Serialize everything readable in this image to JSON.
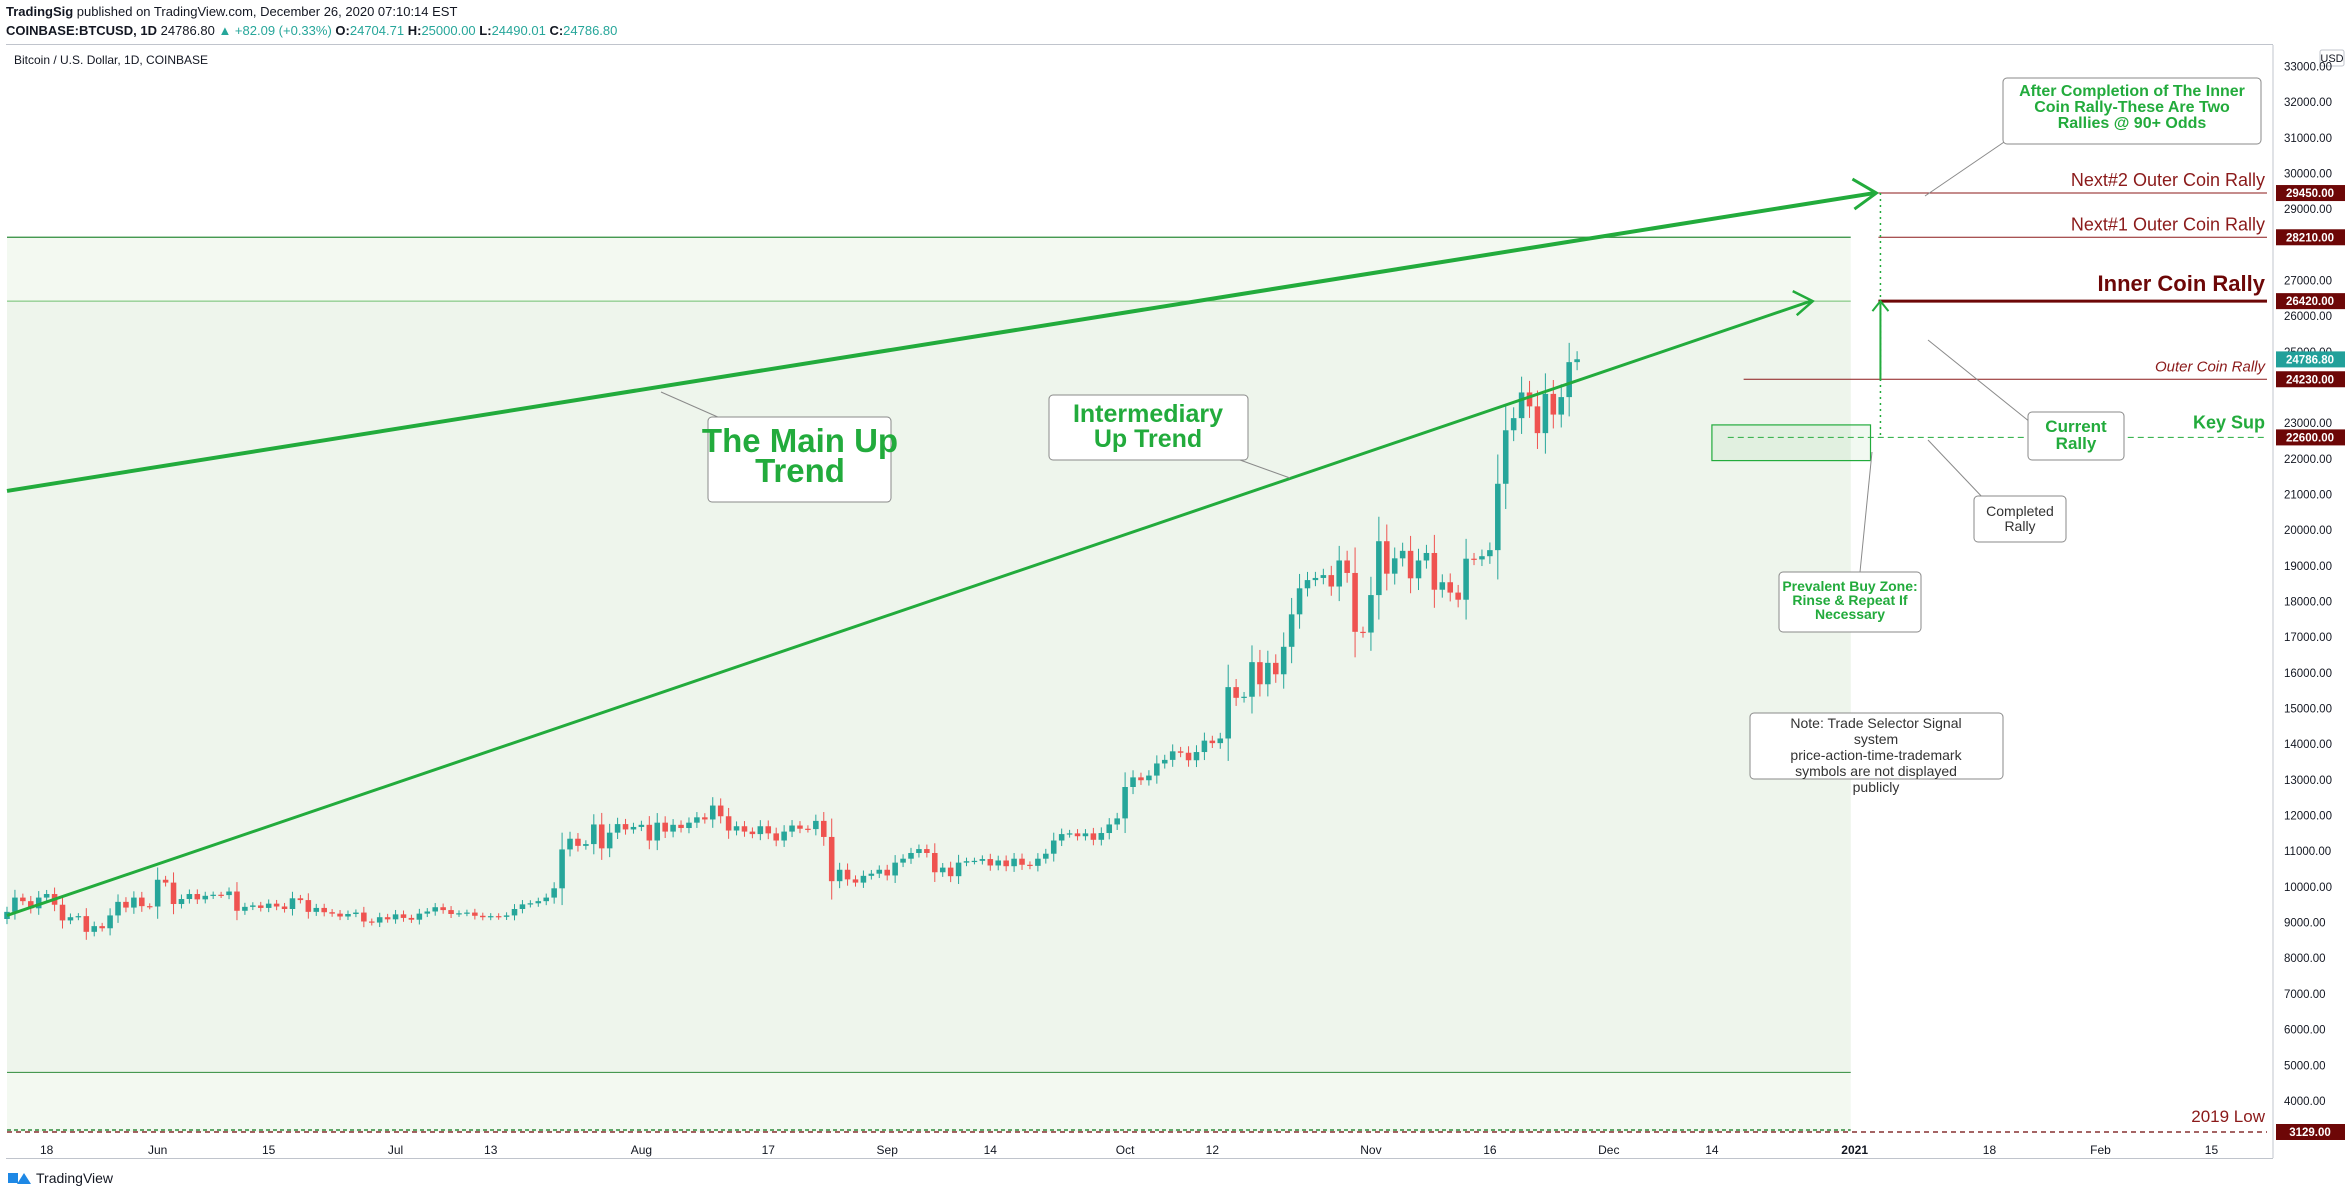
{
  "header": {
    "publisher": "TradingSig",
    "published_text": "published on TradingView.com, December 26, 2020 07:10:14 EST",
    "symbol": "COINBASE:BTCUSD, 1D",
    "last": "24786.80",
    "change": "▲ +82.09 (+0.33%)",
    "o_label": "O:",
    "o": "24704.71",
    "h_label": "H:",
    "h": "25000.00",
    "l_label": "L:",
    "l": "24490.01",
    "c_label": "C:",
    "c": "24786.80"
  },
  "footer": {
    "brand": "TradingView"
  },
  "colors": {
    "up": "#26a69a",
    "down": "#ef5350",
    "trend": "#22ab3c",
    "darkred": "#6d0707",
    "zone": "#eef5ec",
    "teal": "#22a09a"
  },
  "chart_data": {
    "type": "candlestick",
    "title": "Bitcoin / U.S. Dollar, 1D, COINBASE",
    "currency": "USD",
    "ylim": [
      2400,
      33600
    ],
    "y_ticks": [
      3000,
      4000,
      5000,
      6000,
      7000,
      8000,
      9000,
      10000,
      11000,
      12000,
      13000,
      14000,
      15000,
      16000,
      17000,
      18000,
      19000,
      20000,
      21000,
      22000,
      23000,
      24000,
      25000,
      26000,
      27000,
      28000,
      29000,
      30000,
      31000,
      32000,
      33000
    ],
    "x_range": [
      "2020-05-13",
      "2021-02-22"
    ],
    "x_ticks": [
      {
        "date": "2020-05-18",
        "label": "18"
      },
      {
        "date": "2020-06-01",
        "label": "Jun"
      },
      {
        "date": "2020-06-15",
        "label": "15"
      },
      {
        "date": "2020-07-01",
        "label": "Jul"
      },
      {
        "date": "2020-07-13",
        "label": "13"
      },
      {
        "date": "2020-08-01",
        "label": "Aug"
      },
      {
        "date": "2020-08-17",
        "label": "17"
      },
      {
        "date": "2020-09-01",
        "label": "Sep"
      },
      {
        "date": "2020-09-14",
        "label": "14"
      },
      {
        "date": "2020-10-01",
        "label": "Oct"
      },
      {
        "date": "2020-10-12",
        "label": "12"
      },
      {
        "date": "2020-11-01",
        "label": "Nov"
      },
      {
        "date": "2020-11-16",
        "label": "16"
      },
      {
        "date": "2020-12-01",
        "label": "Dec"
      },
      {
        "date": "2020-12-14",
        "label": "14"
      },
      {
        "date": "2021-01-01",
        "label": "2021"
      },
      {
        "date": "2021-01-18",
        "label": "18"
      },
      {
        "date": "2021-02-01",
        "label": "Feb"
      },
      {
        "date": "2021-02-15",
        "label": "15"
      }
    ],
    "close_series": {
      "start": "2020-05-13",
      "values": [
        9300,
        9700,
        9600,
        9400,
        9700,
        9800,
        9500,
        9060,
        9150,
        9180,
        8740,
        8900,
        8840,
        9200,
        9580,
        9420,
        9700,
        9460,
        9450,
        10200,
        10120,
        9520,
        9660,
        9800,
        9650,
        9750,
        9780,
        9770,
        9870,
        9330,
        9440,
        9480,
        9410,
        9530,
        9450,
        9380,
        9680,
        9630,
        9300,
        9410,
        9290,
        9250,
        9170,
        9240,
        9280,
        9030,
        9000,
        9150,
        9090,
        9230,
        9130,
        9080,
        9250,
        9310,
        9430,
        9350,
        9240,
        9260,
        9280,
        9190,
        9150,
        9180,
        9160,
        9200,
        9380,
        9510,
        9540,
        9600,
        9700,
        9960,
        11050,
        11350,
        11150,
        11200,
        11750,
        11080,
        11520,
        11760,
        11610,
        11680,
        11740,
        11300,
        11800,
        11550,
        11740,
        11650,
        11800,
        11950,
        11890,
        12280,
        11980,
        11580,
        11700,
        11550,
        11480,
        11700,
        11500,
        11300,
        11550,
        11720,
        11630,
        11620,
        11850,
        11400,
        10160,
        10480,
        10210,
        10120,
        10310,
        10370,
        10480,
        10320,
        10680,
        10790,
        10950,
        11060,
        10950,
        10410,
        10540,
        10300,
        10680,
        10720,
        10730,
        10780,
        10600,
        10740,
        10580,
        10790,
        10620,
        10590,
        10790,
        10930,
        11300,
        11480,
        11500,
        11420,
        11500,
        11320,
        11510,
        11750,
        11920,
        12800,
        13070,
        12990,
        13120,
        13460,
        13560,
        13800,
        13760,
        13550,
        13780,
        14100,
        14030,
        14160,
        15600,
        15300,
        15330,
        16300,
        15680,
        16280,
        15960,
        16730,
        17640,
        18370,
        18600,
        18660,
        18740,
        18420,
        19150,
        18800,
        17150,
        17130,
        18180,
        19690,
        18780,
        19210,
        19420,
        18650,
        19150,
        19360,
        18330,
        18540,
        18250,
        18050,
        19200,
        19180,
        19270,
        19440,
        21300,
        22800,
        23140,
        23860,
        23470,
        22720,
        23820,
        23240,
        23730,
        24710,
        24790
      ]
    },
    "horizontal_levels": [
      {
        "value": 29450,
        "label": "Next#2 Outer Coin Rally",
        "tag": "29450.00"
      },
      {
        "value": 28210,
        "label": "Next#1 Outer Coin Rally",
        "tag": "28210.00"
      },
      {
        "value": 26420,
        "label": "Inner Coin Rally",
        "tag": "26420.00"
      },
      {
        "value": 24230,
        "label": "Outer Coin Rally",
        "tag": "24230.00"
      },
      {
        "value": 22600,
        "label": "Key Sup",
        "tag": "22600.00"
      },
      {
        "value": 3129,
        "label": "2019 Low",
        "tag": "3129.00"
      }
    ],
    "current_price_tag": "24786.80",
    "annotations": {
      "main_trend": "The Main Up Trend",
      "intermediary_trend": "Intermediary Up Trend",
      "after_completion": "After Completion of The Inner Coin Rally-These Are Two Rallies @ 90+ Odds",
      "current_rally": "Current Rally",
      "completed_rally": "Completed Rally",
      "buy_zone": "Prevalent Buy Zone: Rinse & Repeat If Necessary",
      "note": "Note: Trade Selector Signal system price-action-time-trademark symbols are not displayed publicly"
    }
  }
}
